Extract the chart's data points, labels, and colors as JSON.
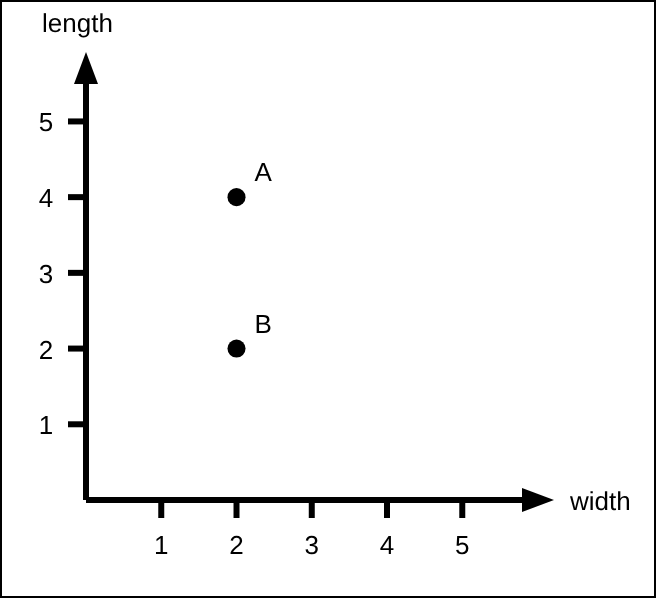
{
  "chart_data": {
    "type": "scatter",
    "xlabel": "width",
    "ylabel": "length",
    "x": [
      2,
      2
    ],
    "values": [
      4,
      2
    ],
    "value_labels": [
      "A",
      "B"
    ],
    "color": "#000000",
    "marker": "circle",
    "xlim": [
      0,
      5.9
    ],
    "ylim": [
      0,
      5.6
    ],
    "xticks": [
      1,
      2,
      3,
      4,
      5
    ],
    "yticks": [
      1,
      2,
      3,
      4,
      5
    ],
    "grid": false,
    "legend": false
  }
}
